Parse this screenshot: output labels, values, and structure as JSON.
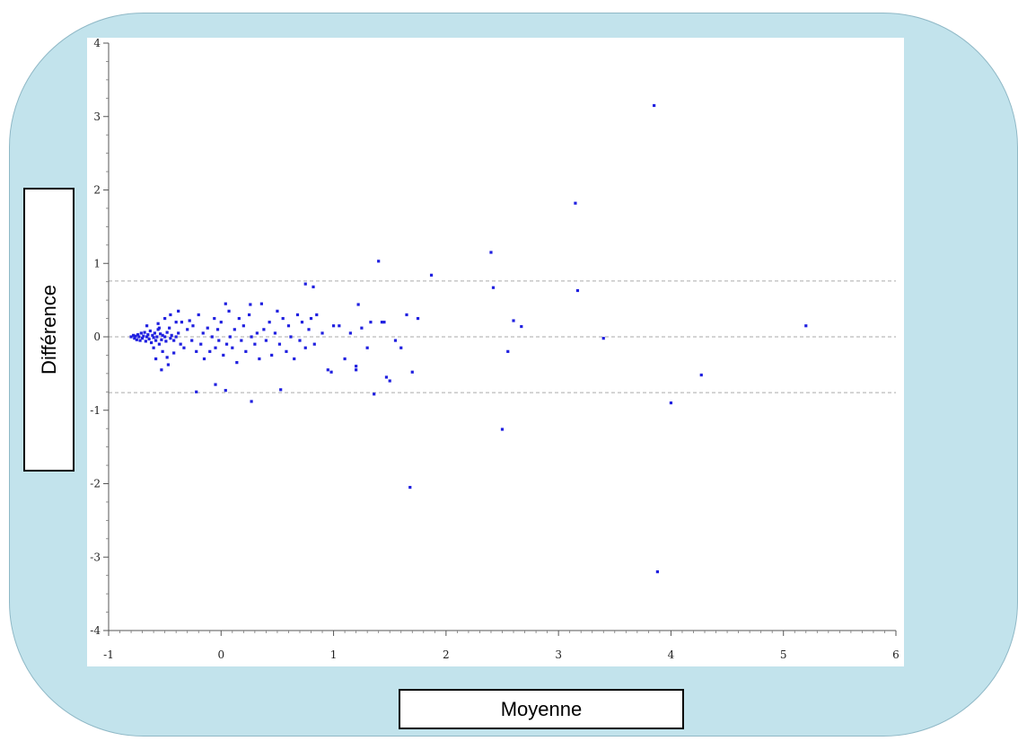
{
  "chart_data": {
    "type": "scatter",
    "xlabel": "Moyenne",
    "ylabel": "Différence",
    "xlim": [
      -1,
      6
    ],
    "ylim": [
      -4,
      4
    ],
    "xticks": [
      "-1",
      "0",
      "1",
      "2",
      "3",
      "4",
      "5",
      "6"
    ],
    "yticks": [
      "-4",
      "-3",
      "-2",
      "-1",
      "0",
      "1",
      "2",
      "3",
      "4"
    ],
    "reference_lines": [
      0.76,
      0.0,
      -0.76
    ],
    "grid": false,
    "marker_color": "#2020e0",
    "points": [
      [
        -0.8,
        0.0
      ],
      [
        -0.78,
        0.02
      ],
      [
        -0.77,
        -0.02
      ],
      [
        -0.76,
        0.01
      ],
      [
        -0.75,
        -0.04
      ],
      [
        -0.74,
        0.03
      ],
      [
        -0.73,
        0.0
      ],
      [
        -0.72,
        -0.05
      ],
      [
        -0.71,
        0.05
      ],
      [
        -0.7,
        -0.02
      ],
      [
        -0.69,
        0.01
      ],
      [
        -0.68,
        0.06
      ],
      [
        -0.67,
        -0.06
      ],
      [
        -0.66,
        0.0
      ],
      [
        -0.65,
        0.03
      ],
      [
        -0.64,
        -0.03
      ],
      [
        -0.63,
        0.08
      ],
      [
        -0.62,
        -0.08
      ],
      [
        -0.61,
        0.02
      ],
      [
        -0.6,
        -0.01
      ],
      [
        -0.59,
        0.05
      ],
      [
        -0.58,
        -0.05
      ],
      [
        -0.57,
        0.0
      ],
      [
        -0.56,
        0.1
      ],
      [
        -0.55,
        -0.1
      ],
      [
        -0.54,
        0.04
      ],
      [
        -0.53,
        -0.04
      ],
      [
        -0.52,
        0.02
      ],
      [
        -0.5,
        0.0
      ],
      [
        -0.49,
        -0.06
      ],
      [
        -0.48,
        0.06
      ],
      [
        -0.46,
        0.12
      ],
      [
        -0.45,
        -0.02
      ],
      [
        -0.44,
        0.02
      ],
      [
        -0.42,
        -0.05
      ],
      [
        -0.4,
        0.0
      ],
      [
        -0.66,
        0.15
      ],
      [
        -0.6,
        -0.15
      ],
      [
        -0.56,
        0.18
      ],
      [
        -0.52,
        -0.2
      ],
      [
        -0.5,
        0.25
      ],
      [
        -0.48,
        -0.28
      ],
      [
        -0.45,
        0.3
      ],
      [
        -0.42,
        -0.22
      ],
      [
        -0.4,
        0.2
      ],
      [
        -0.58,
        -0.3
      ],
      [
        -0.55,
        0.12
      ],
      [
        -0.53,
        -0.45
      ],
      [
        -0.47,
        -0.38
      ],
      [
        -0.38,
        0.05
      ],
      [
        -0.36,
        -0.1
      ],
      [
        -0.35,
        0.2
      ],
      [
        -0.33,
        -0.15
      ],
      [
        -0.3,
        0.1
      ],
      [
        -0.28,
        0.22
      ],
      [
        -0.26,
        -0.05
      ],
      [
        -0.25,
        0.15
      ],
      [
        -0.22,
        -0.2
      ],
      [
        -0.2,
        0.3
      ],
      [
        -0.18,
        -0.1
      ],
      [
        -0.16,
        0.05
      ],
      [
        -0.15,
        -0.3
      ],
      [
        -0.12,
        0.12
      ],
      [
        -0.1,
        -0.2
      ],
      [
        -0.08,
        0.0
      ],
      [
        -0.06,
        0.25
      ],
      [
        -0.05,
        -0.15
      ],
      [
        -0.03,
        0.1
      ],
      [
        -0.02,
        -0.05
      ],
      [
        0.0,
        0.2
      ],
      [
        0.02,
        -0.25
      ],
      [
        0.04,
        0.45
      ],
      [
        0.05,
        -0.1
      ],
      [
        0.07,
        0.35
      ],
      [
        0.08,
        0.0
      ],
      [
        0.1,
        -0.15
      ],
      [
        0.12,
        0.1
      ],
      [
        0.14,
        -0.35
      ],
      [
        0.16,
        0.25
      ],
      [
        0.18,
        -0.05
      ],
      [
        0.2,
        0.15
      ],
      [
        0.22,
        -0.2
      ],
      [
        0.25,
        0.3
      ],
      [
        0.27,
        0.0
      ],
      [
        0.3,
        -0.1
      ],
      [
        0.32,
        0.05
      ],
      [
        0.34,
        -0.3
      ],
      [
        0.36,
        0.45
      ],
      [
        0.38,
        0.1
      ],
      [
        0.4,
        -0.05
      ],
      [
        0.43,
        0.2
      ],
      [
        0.45,
        -0.25
      ],
      [
        0.48,
        0.05
      ],
      [
        0.5,
        0.35
      ],
      [
        0.52,
        -0.1
      ],
      [
        0.55,
        0.25
      ],
      [
        0.58,
        -0.2
      ],
      [
        0.6,
        0.15
      ],
      [
        0.62,
        0.0
      ],
      [
        0.65,
        -0.3
      ],
      [
        0.68,
        0.3
      ],
      [
        0.7,
        -0.05
      ],
      [
        0.72,
        0.2
      ],
      [
        0.75,
        -0.15
      ],
      [
        0.78,
        0.1
      ],
      [
        0.8,
        0.25
      ],
      [
        0.83,
        -0.1
      ],
      [
        0.85,
        0.3
      ],
      [
        -0.38,
        0.35
      ],
      [
        -0.22,
        -0.75
      ],
      [
        -0.05,
        -0.65
      ],
      [
        0.04,
        -0.73
      ],
      [
        0.27,
        -0.88
      ],
      [
        0.53,
        -0.72
      ],
      [
        0.75,
        0.72
      ],
      [
        0.82,
        0.68
      ],
      [
        0.95,
        -0.45
      ],
      [
        0.98,
        -0.48
      ],
      [
        1.05,
        0.15
      ],
      [
        1.1,
        -0.3
      ],
      [
        1.15,
        0.05
      ],
      [
        1.2,
        -0.45
      ],
      [
        1.25,
        0.12
      ],
      [
        1.3,
        -0.15
      ],
      [
        1.33,
        0.2
      ],
      [
        1.36,
        -0.78
      ],
      [
        1.4,
        1.03
      ],
      [
        1.43,
        0.2
      ],
      [
        1.47,
        -0.55
      ],
      [
        1.5,
        -0.6
      ],
      [
        1.55,
        -0.05
      ],
      [
        1.6,
        -0.15
      ],
      [
        1.65,
        0.3
      ],
      [
        1.68,
        -2.05
      ],
      [
        1.7,
        -0.48
      ],
      [
        1.75,
        0.25
      ],
      [
        1.87,
        0.84
      ],
      [
        2.4,
        1.15
      ],
      [
        2.42,
        0.67
      ],
      [
        2.5,
        -1.26
      ],
      [
        2.55,
        -0.2
      ],
      [
        2.6,
        0.22
      ],
      [
        2.67,
        0.14
      ],
      [
        3.15,
        1.82
      ],
      [
        3.17,
        0.63
      ],
      [
        3.4,
        -0.02
      ],
      [
        3.85,
        3.15
      ],
      [
        3.88,
        -3.2
      ],
      [
        4.0,
        -0.9
      ],
      [
        4.27,
        -0.52
      ],
      [
        5.2,
        0.15
      ],
      [
        1.22,
        0.44
      ],
      [
        0.26,
        0.44
      ],
      [
        1.2,
        -0.4
      ],
      [
        1.45,
        0.2
      ],
      [
        1.0,
        0.15
      ],
      [
        0.9,
        0.05
      ]
    ]
  }
}
